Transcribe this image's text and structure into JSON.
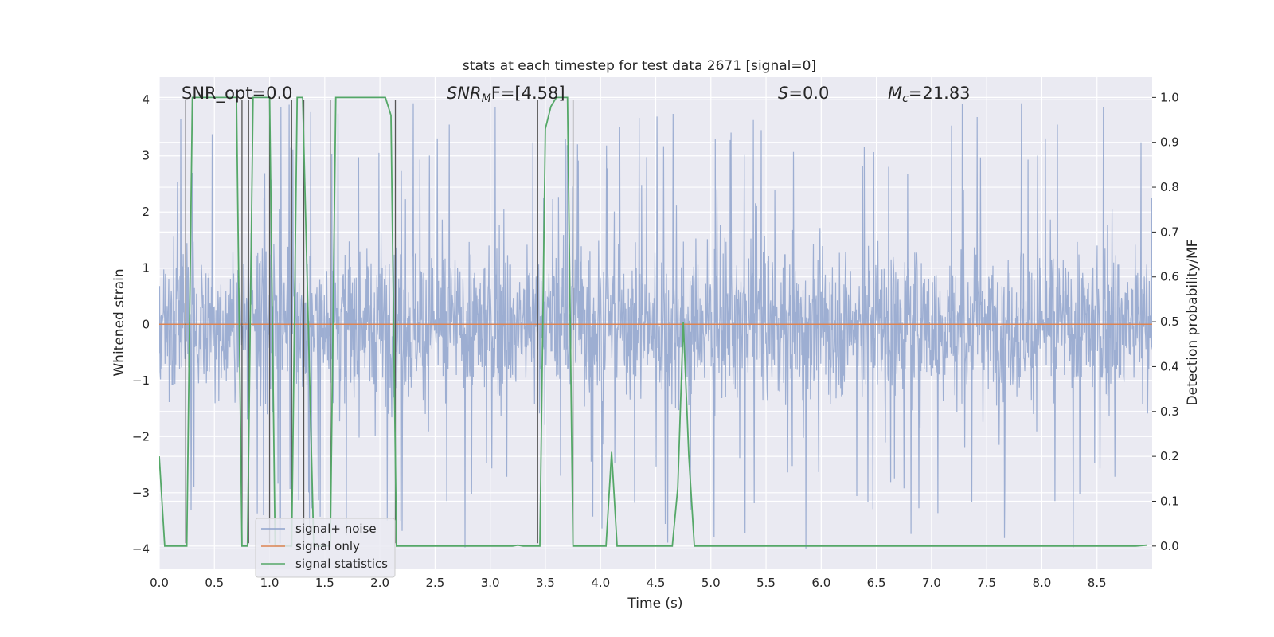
{
  "chart_data": {
    "type": "line",
    "title": "stats at each timestep for test data 2671 [signal=0]",
    "xlabel": "Time (s)",
    "ylabel_left": "Whitened strain",
    "ylabel_right": "Detection probability/MF",
    "xlim": [
      0.0,
      9.0
    ],
    "ylim_left": [
      -4.35,
      4.4
    ],
    "ylim_right": [
      -0.05,
      1.045
    ],
    "x_ticks": [
      "0.0",
      "0.5",
      "1.0",
      "1.5",
      "2.0",
      "2.5",
      "3.0",
      "3.5",
      "4.0",
      "4.5",
      "5.0",
      "5.5",
      "6.0",
      "6.5",
      "7.0",
      "7.5",
      "8.0",
      "8.5"
    ],
    "y_left_ticks": [
      "4",
      "3",
      "2",
      "1",
      "0",
      "−1",
      "−2",
      "−3",
      "−4"
    ],
    "y_right_ticks": [
      "1.0",
      "0.9",
      "0.8",
      "0.7",
      "0.6",
      "0.5",
      "0.4",
      "0.3",
      "0.2",
      "0.1",
      "0.0"
    ],
    "grid": true,
    "legend_position": "lower-left",
    "annotations": {
      "snr_opt": "SNR_opt=0.0",
      "snr_mf_prefix": "SNR",
      "snr_mf_sub": "M",
      "snr_mf_suffix": "F=[4.58]",
      "s_label": "S",
      "s_value": "=0.0",
      "mc_label": "M",
      "mc_sub": "c",
      "mc_value": "=21.83"
    },
    "series": [
      {
        "name": "signal+ noise",
        "color": "#8fa3cc",
        "axis": "left",
        "description_values": "whitened noise, dense band approx -1.5..1.6 with peaks to about ±4",
        "amplitude_core": 1.6,
        "amplitude_peak": 4.0
      },
      {
        "name": "signal only",
        "color": "#dd8452",
        "axis": "left",
        "x": [
          0.0,
          9.0
        ],
        "y": [
          0.0,
          0.0
        ]
      },
      {
        "name": "signal statistics",
        "color": "#55a868",
        "axis": "right",
        "x": [
          0.0,
          0.05,
          0.1,
          0.15,
          0.2,
          0.25,
          0.3,
          0.35,
          0.4,
          0.45,
          0.5,
          0.55,
          0.6,
          0.65,
          0.7,
          0.75,
          0.8,
          0.85,
          0.9,
          0.95,
          1.0,
          1.05,
          1.1,
          1.15,
          1.2,
          1.25,
          1.3,
          1.35,
          1.4,
          1.45,
          1.5,
          1.55,
          1.6,
          1.65,
          1.7,
          1.75,
          1.8,
          1.85,
          1.9,
          1.95,
          2.0,
          2.05,
          2.1,
          2.15,
          2.2,
          2.25,
          2.5,
          3.0,
          3.2,
          3.25,
          3.3,
          3.4,
          3.45,
          3.5,
          3.55,
          3.6,
          3.65,
          3.7,
          3.75,
          3.8,
          3.85,
          3.9,
          4.0,
          4.05,
          4.1,
          4.15,
          4.2,
          4.5,
          4.6,
          4.65,
          4.7,
          4.75,
          4.8,
          4.85,
          4.9,
          5.0,
          6.0,
          7.0,
          8.0,
          8.8,
          8.85,
          8.95
        ],
        "y": [
          0.2,
          0.0,
          0.0,
          0.0,
          0.0,
          0.0,
          1.0,
          1.0,
          1.0,
          1.0,
          1.0,
          1.0,
          1.0,
          1.0,
          1.0,
          0.0,
          0.0,
          1.0,
          1.0,
          1.0,
          1.0,
          0.0,
          0.0,
          0.0,
          0.0,
          1.0,
          1.0,
          0.5,
          0.0,
          0.0,
          0.0,
          0.0,
          1.0,
          1.0,
          1.0,
          1.0,
          1.0,
          1.0,
          1.0,
          1.0,
          1.0,
          1.0,
          0.96,
          0.0,
          0.0,
          0.0,
          0.0,
          0.0,
          0.0,
          0.002,
          0.0,
          0.0,
          0.0,
          0.93,
          0.98,
          1.0,
          1.0,
          1.0,
          0.0,
          0.0,
          0.0,
          0.0,
          0.0,
          0.0,
          0.21,
          0.0,
          0.0,
          0.0,
          0.0,
          0.0,
          0.13,
          0.5,
          0.2,
          0.0,
          0.0,
          0.0,
          0.0,
          0.0,
          0.0,
          0.0,
          0.0,
          0.002
        ]
      }
    ],
    "vertical_markers_x": [
      0.24,
      0.75,
      0.81,
      1.0,
      1.2,
      1.31,
      1.55,
      2.14,
      3.43,
      3.75
    ],
    "colors": {
      "plot_background": "#eaeaf2",
      "grid": "#ffffff",
      "marker_lines": "#555555"
    }
  }
}
